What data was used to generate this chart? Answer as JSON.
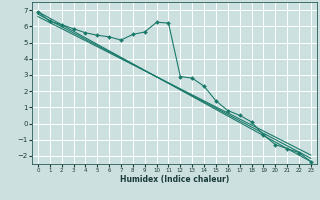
{
  "title": "",
  "xlabel": "Humidex (Indice chaleur)",
  "bg_color": "#cde0e0",
  "grid_color": "#ffffff",
  "line_color": "#1a7a6a",
  "xlim": [
    -0.5,
    23.5
  ],
  "ylim": [
    -2.5,
    7.5
  ],
  "xticks": [
    0,
    1,
    2,
    3,
    4,
    5,
    6,
    7,
    8,
    9,
    10,
    11,
    12,
    13,
    14,
    15,
    16,
    17,
    18,
    19,
    20,
    21,
    22,
    23
  ],
  "yticks": [
    -2,
    -1,
    0,
    1,
    2,
    3,
    4,
    5,
    6,
    7
  ],
  "series": [
    {
      "x": [
        0,
        1,
        2,
        3,
        4,
        5,
        6,
        7,
        8,
        9,
        10,
        11,
        12,
        13,
        14,
        15,
        16,
        17,
        18,
        19,
        20,
        21,
        22,
        23
      ],
      "y": [
        6.9,
        6.3,
        6.1,
        5.85,
        5.6,
        5.45,
        5.35,
        5.15,
        5.5,
        5.65,
        6.25,
        6.2,
        2.9,
        2.8,
        2.3,
        1.4,
        0.8,
        0.5,
        0.1,
        -0.7,
        -1.3,
        -1.55,
        -1.8,
        -2.35
      ]
    },
    {
      "x": [
        0,
        23
      ],
      "y": [
        6.9,
        -2.35
      ]
    },
    {
      "x": [
        0,
        23
      ],
      "y": [
        6.75,
        -2.15
      ]
    },
    {
      "x": [
        0,
        23
      ],
      "y": [
        6.6,
        -1.95
      ]
    }
  ],
  "marker_series": [
    0
  ],
  "marker": "D",
  "markersize": 2.0,
  "linewidth": 0.8,
  "xlabel_fontsize": 5.5,
  "xlabel_bold": true,
  "tick_fontsize_x": 4.0,
  "tick_fontsize_y": 5.0
}
